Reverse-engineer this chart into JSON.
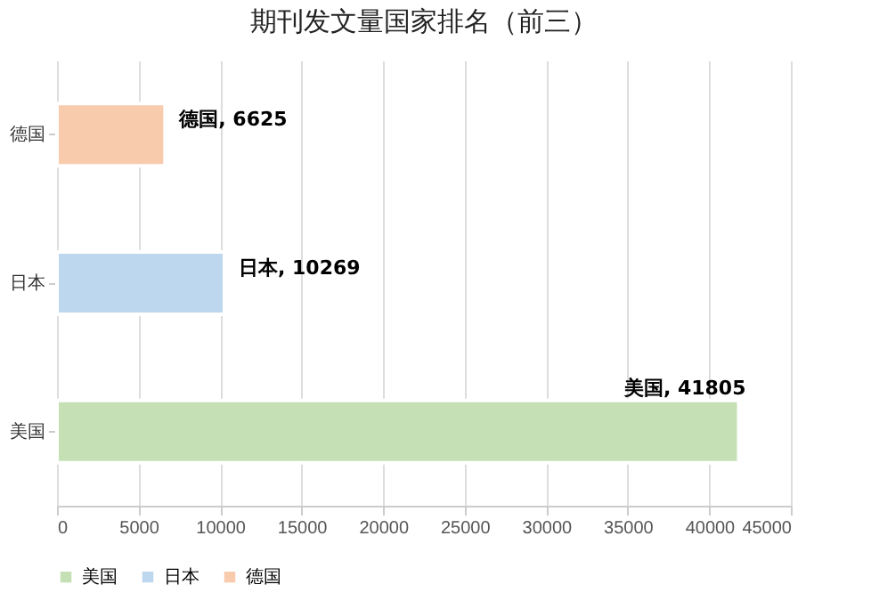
{
  "chart_data": {
    "type": "bar",
    "orientation": "horizontal",
    "title": "期刊发文量国家排名（前三）",
    "categories": [
      "德国",
      "日本",
      "美国"
    ],
    "series": [
      {
        "name": "美国",
        "color": "#c5e0b4",
        "values": [
          null,
          null,
          41805
        ],
        "value_labels": [
          null,
          null,
          "美国, 41805"
        ]
      },
      {
        "name": "日本",
        "color": "#bdd7ee",
        "values": [
          null,
          10269,
          null
        ],
        "value_labels": [
          null,
          "日本, 10269",
          null
        ]
      },
      {
        "name": "德国",
        "color": "#f8cbad",
        "values": [
          6625,
          null,
          null
        ],
        "value_labels": [
          "德国, 6625",
          null,
          null
        ]
      }
    ],
    "xlim": [
      0,
      45000
    ],
    "xticks": [
      0,
      5000,
      10000,
      15000,
      20000,
      25000,
      30000,
      35000,
      40000,
      45000
    ],
    "grid": "x",
    "legend": "bottom"
  }
}
